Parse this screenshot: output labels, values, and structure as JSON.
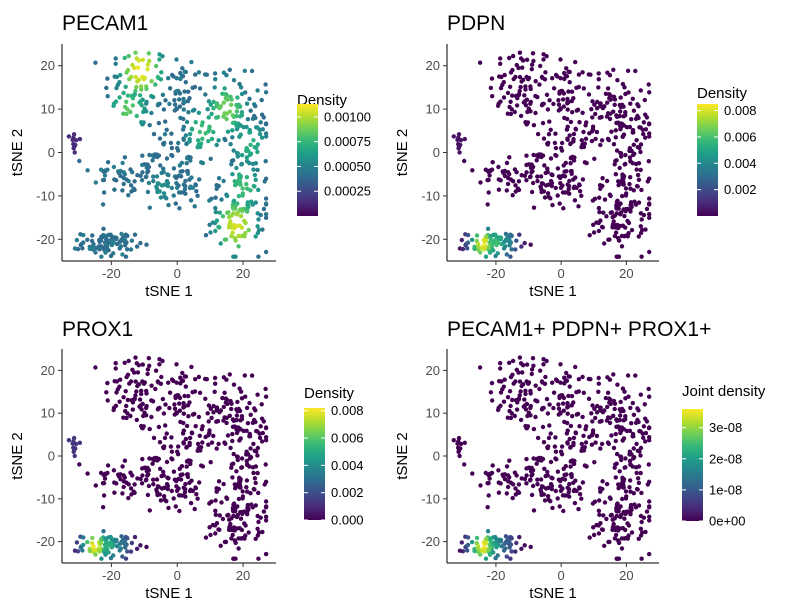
{
  "figure": {
    "layout": "2x2 grid",
    "x_ticks": [
      -20,
      0,
      20
    ],
    "y_ticks": [
      -20,
      -10,
      0,
      10,
      20
    ]
  },
  "chart_data": [
    {
      "type": "scatter",
      "title": "PECAM1",
      "xlabel": "tSNE 1",
      "ylabel": "tSNE 2",
      "xlim": [
        -35,
        30
      ],
      "ylim": [
        -25,
        25
      ],
      "color_scale": "viridis",
      "legend": {
        "title": "Density",
        "range": [
          0.0,
          0.00113
        ],
        "ticks": [
          0.00025,
          0.0005,
          0.00075,
          0.001
        ],
        "tick_labels": [
          "0.00025",
          "0.00050",
          "0.00075",
          "0.00100"
        ],
        "placement": "right"
      },
      "hotspots": [
        {
          "x": -11,
          "y": 19,
          "strength": 1.0
        },
        {
          "x": -15,
          "y": 10,
          "strength": 0.75
        },
        {
          "x": 18,
          "y": -17,
          "strength": 0.95
        },
        {
          "x": 15,
          "y": 10,
          "strength": 0.8
        },
        {
          "x": 8,
          "y": 5,
          "strength": 0.7
        },
        {
          "x": 20,
          "y": -8,
          "strength": 0.7
        },
        {
          "x": 22,
          "y": 2,
          "strength": 0.65
        },
        {
          "x": -5,
          "y": -8,
          "strength": 0.5
        }
      ],
      "base_level": 0.35,
      "isolated_level": 0.12
    },
    {
      "type": "scatter",
      "title": "PDPN",
      "xlabel": "tSNE 1",
      "ylabel": "tSNE 2",
      "xlim": [
        -35,
        30
      ],
      "ylim": [
        -25,
        25
      ],
      "color_scale": "viridis",
      "legend": {
        "title": "Density",
        "range": [
          0.0,
          0.0085
        ],
        "ticks": [
          0.002,
          0.004,
          0.006,
          0.008
        ],
        "tick_labels": [
          "0.002",
          "0.004",
          "0.006",
          "0.008"
        ],
        "placement": "right"
      },
      "hotspots": [
        {
          "x": -24,
          "y": -21,
          "strength": 1.0
        },
        {
          "x": -20,
          "y": -21,
          "strength": 0.7
        },
        {
          "x": -17,
          "y": -21,
          "strength": 0.5
        }
      ],
      "base_level": 0.0,
      "isolated_level": 0.05
    },
    {
      "type": "scatter",
      "title": "PROX1",
      "xlabel": "tSNE 1",
      "ylabel": "tSNE 2",
      "xlim": [
        -35,
        30
      ],
      "ylim": [
        -25,
        25
      ],
      "color_scale": "viridis",
      "legend": {
        "title": "Density",
        "range": [
          0.0,
          0.0082
        ],
        "ticks": [
          0.0,
          0.002,
          0.004,
          0.006,
          0.008
        ],
        "tick_labels": [
          "0.000",
          "0.002",
          "0.004",
          "0.006",
          "0.008"
        ],
        "placement": "right"
      },
      "hotspots": [
        {
          "x": -25,
          "y": -21,
          "strength": 1.0
        },
        {
          "x": -21,
          "y": -21,
          "strength": 0.65
        },
        {
          "x": -18,
          "y": -21,
          "strength": 0.45
        }
      ],
      "base_level": 0.0,
      "isolated_level": 0.15
    },
    {
      "type": "scatter",
      "title": "PECAM1+ PDPN+ PROX1+",
      "xlabel": "tSNE 1",
      "ylabel": "tSNE 2",
      "xlim": [
        -35,
        30
      ],
      "ylim": [
        -25,
        25
      ],
      "color_scale": "viridis",
      "legend": {
        "title": "Joint density",
        "range": [
          0.0,
          3.6e-08
        ],
        "ticks": [
          0.0,
          1e-08,
          2e-08,
          3e-08
        ],
        "tick_labels": [
          "0e+00",
          "1e-08",
          "2e-08",
          "3e-08"
        ],
        "placement": "right"
      },
      "hotspots": [
        {
          "x": -24,
          "y": -21,
          "strength": 1.0
        },
        {
          "x": -21,
          "y": -21,
          "strength": 0.6
        },
        {
          "x": -18,
          "y": -21,
          "strength": 0.35
        }
      ],
      "base_level": 0.0,
      "isolated_level": 0.0
    }
  ],
  "shared_point_clusters": [
    {
      "name": "upper-left",
      "cx": -12,
      "cy": 15,
      "sx": 5,
      "sy": 5,
      "n": 90
    },
    {
      "name": "upper-mid",
      "cx": 0,
      "cy": 14,
      "sx": 3,
      "sy": 5,
      "n": 40
    },
    {
      "name": "middle-arc",
      "cx": -10,
      "cy": -5,
      "sx": 8,
      "sy": 3,
      "n": 90
    },
    {
      "name": "central-vertical",
      "cx": 3,
      "cy": 4,
      "sx": 4,
      "sy": 6,
      "n": 70
    },
    {
      "name": "upper-right",
      "cx": 15,
      "cy": 11,
      "sx": 4,
      "sy": 4,
      "n": 60
    },
    {
      "name": "right-band",
      "cx": 21,
      "cy": -4,
      "sx": 4,
      "sy": 9,
      "n": 150
    },
    {
      "name": "lower-right",
      "cx": 17,
      "cy": -16,
      "sx": 4,
      "sy": 3,
      "n": 60
    },
    {
      "name": "center-lower",
      "cx": 0,
      "cy": -8,
      "sx": 4,
      "sy": 2.5,
      "n": 40
    },
    {
      "name": "bottom-cluster",
      "cx": -21,
      "cy": -21,
      "sx": 4,
      "sy": 1.3,
      "n": 90
    },
    {
      "name": "isolated-left",
      "cx": -31,
      "cy": 2,
      "sx": 0.8,
      "sy": 1.5,
      "n": 12
    }
  ]
}
